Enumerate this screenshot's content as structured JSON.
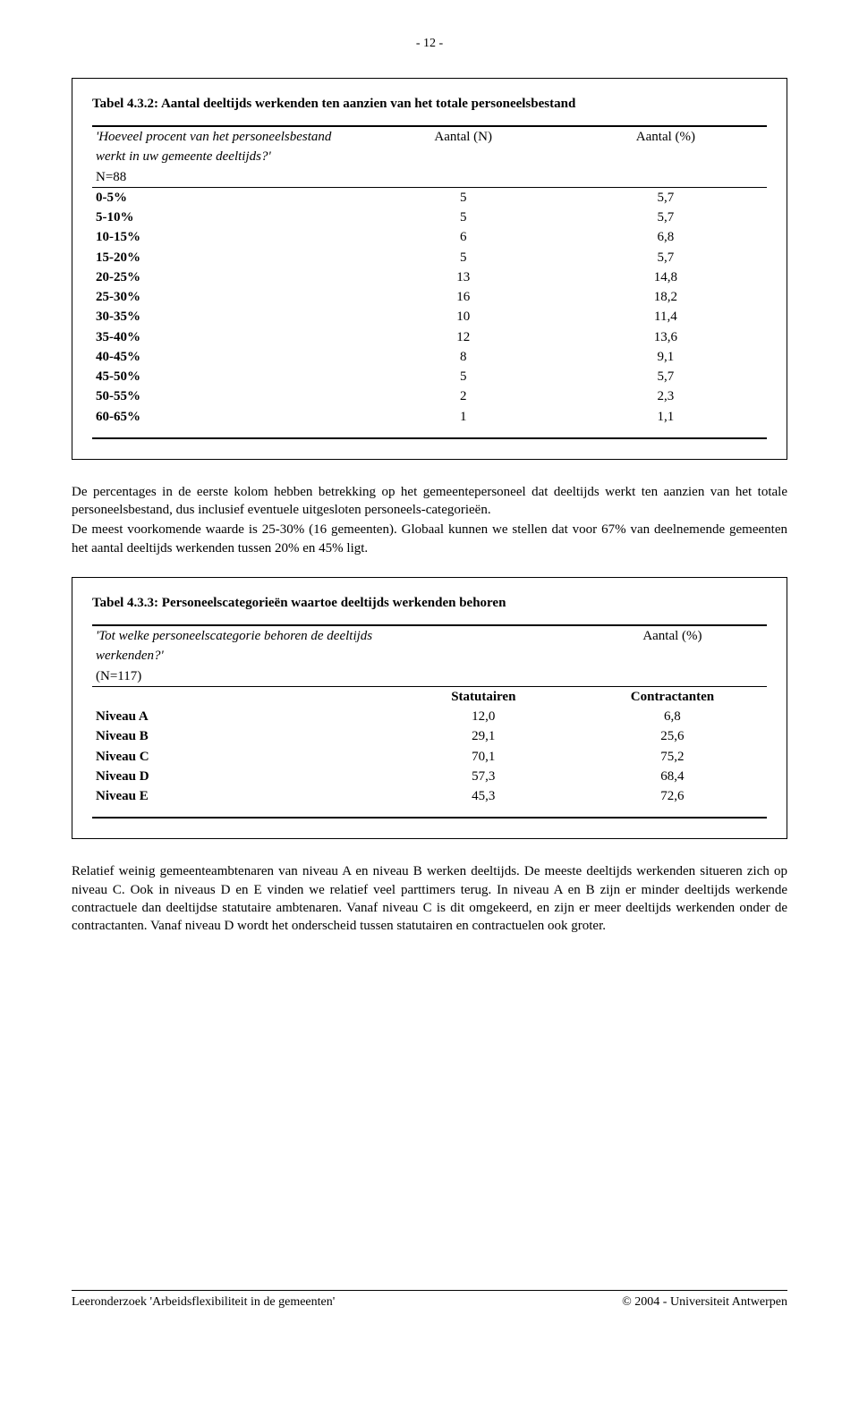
{
  "page_number": "- 12 -",
  "table1": {
    "title": "Tabel 4.3.2: Aantal deeltijds werkenden ten aanzien van het totale personeelsbestand",
    "q_line1": "'Hoeveel procent van het personeelsbestand",
    "q_line2": "werkt in uw gemeente deeltijds?'",
    "n_label": "N=88",
    "col_n": "Aantal (N)",
    "col_p": "Aantal (%)",
    "rows": [
      {
        "label": "0-5%",
        "n": "5",
        "p": "5,7"
      },
      {
        "label": "5-10%",
        "n": "5",
        "p": "5,7"
      },
      {
        "label": "10-15%",
        "n": "6",
        "p": "6,8"
      },
      {
        "label": "15-20%",
        "n": "5",
        "p": "5,7"
      },
      {
        "label": "20-25%",
        "n": "13",
        "p": "14,8"
      },
      {
        "label": "25-30%",
        "n": "16",
        "p": "18,2"
      },
      {
        "label": "30-35%",
        "n": "10",
        "p": "11,4"
      },
      {
        "label": "35-40%",
        "n": "12",
        "p": "13,6"
      },
      {
        "label": "40-45%",
        "n": "8",
        "p": "9,1"
      },
      {
        "label": "45-50%",
        "n": "5",
        "p": "5,7"
      },
      {
        "label": "50-55%",
        "n": "2",
        "p": "2,3"
      },
      {
        "label": "60-65%",
        "n": "1",
        "p": "1,1"
      }
    ]
  },
  "para1": "De percentages in de eerste kolom hebben betrekking op het gemeentepersoneel dat deeltijds werkt ten aanzien van het totale personeelsbestand, dus inclusief eventuele uitgesloten personeels-categorieën.",
  "para2": "De meest voorkomende waarde is 25-30% (16 gemeenten). Globaal kunnen we stellen dat voor 67% van deelnemende gemeenten het aantal deeltijds werkenden tussen 20% en 45% ligt.",
  "table2": {
    "title": "Tabel 4.3.3: Personeelscategorieën waartoe deeltijds werkenden behoren",
    "q_line1": "'Tot welke personeelscategorie behoren de deeltijds",
    "q_line2": "werkenden?'",
    "n_label": "(N=117)",
    "col_p": "Aantal (%)",
    "sub_a": "Statutairen",
    "sub_b": "Contractanten",
    "rows": [
      {
        "label": "Niveau A",
        "a": "12,0",
        "b": "6,8"
      },
      {
        "label": "Niveau B",
        "a": "29,1",
        "b": "25,6"
      },
      {
        "label": "Niveau C",
        "a": "70,1",
        "b": "75,2"
      },
      {
        "label": "Niveau D",
        "a": "57,3",
        "b": "68,4"
      },
      {
        "label": "Niveau E",
        "a": "45,3",
        "b": "72,6"
      }
    ]
  },
  "para3": "Relatief weinig gemeenteambtenaren van niveau A en niveau B werken deeltijds. De meeste deeltijds werkenden situeren zich op niveau C. Ook in niveaus D en E vinden we relatief veel parttimers terug. In niveau A en B zijn er minder deeltijds werkende contractuele dan deeltijdse statutaire ambtenaren. Vanaf niveau C is dit omgekeerd, en zijn er meer deeltijds werkenden onder de contractanten. Vanaf niveau D wordt het onderscheid tussen statutairen en contractuelen ook groter.",
  "footer_left": "Leeronderzoek 'Arbeidsflexibiliteit in de gemeenten'",
  "footer_right": "© 2004 - Universiteit Antwerpen"
}
